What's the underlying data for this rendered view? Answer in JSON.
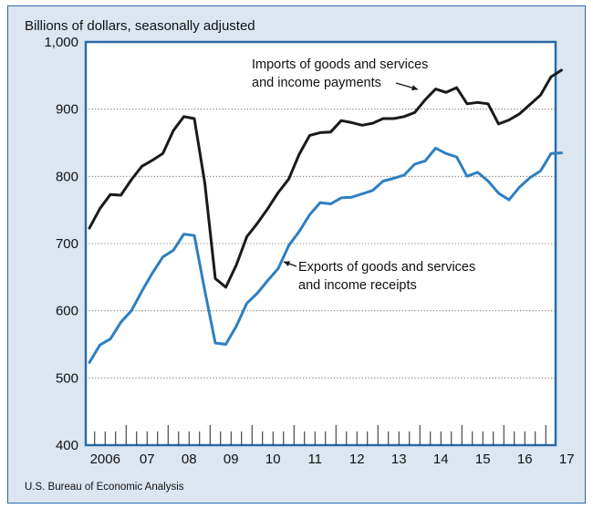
{
  "chart_data": {
    "type": "line",
    "ylabel": "Billions of dollars, seasonally adjusted",
    "ylim": [
      400,
      1000
    ],
    "yticks": [
      400,
      500,
      600,
      700,
      800,
      900,
      1000
    ],
    "ytick_labels": [
      "400",
      "500",
      "600",
      "700",
      "800",
      "900",
      "1,000"
    ],
    "x_year_labels": [
      "2006",
      "07",
      "08",
      "09",
      "10",
      "11",
      "12",
      "13",
      "14",
      "15",
      "16",
      "17"
    ],
    "x_start_year": 2006,
    "quarters_per_year": 4,
    "grid": "horizontal-dotted",
    "series": [
      {
        "name": "Imports of goods and services and income payments",
        "label_lines": [
          "Imports of goods and services",
          "and income payments"
        ],
        "color": "#1a1a1a",
        "values": [
          723,
          752,
          773,
          772,
          795,
          815,
          824,
          834,
          868,
          889,
          886,
          790,
          648,
          635,
          668,
          710,
          730,
          752,
          776,
          796,
          833,
          861,
          865,
          866,
          883,
          880,
          876,
          879,
          886,
          886,
          889,
          895,
          914,
          930,
          925,
          932,
          908,
          910,
          908,
          878,
          884,
          893,
          907,
          921,
          948,
          958
        ]
      },
      {
        "name": "Exports of goods and services and income receipts",
        "label_lines": [
          "Exports of goods and services",
          "and income receipts"
        ],
        "color": "#2e7fc1",
        "values": [
          523,
          549,
          558,
          583,
          600,
          629,
          656,
          680,
          690,
          714,
          712,
          630,
          552,
          550,
          577,
          611,
          626,
          645,
          663,
          697,
          718,
          743,
          761,
          759,
          768,
          769,
          774,
          779,
          793,
          797,
          802,
          818,
          823,
          842,
          834,
          829,
          800,
          806,
          793,
          775,
          765,
          784,
          798,
          808,
          834,
          835
        ]
      }
    ]
  },
  "source": "U.S. Bureau of Economic Analysis"
}
